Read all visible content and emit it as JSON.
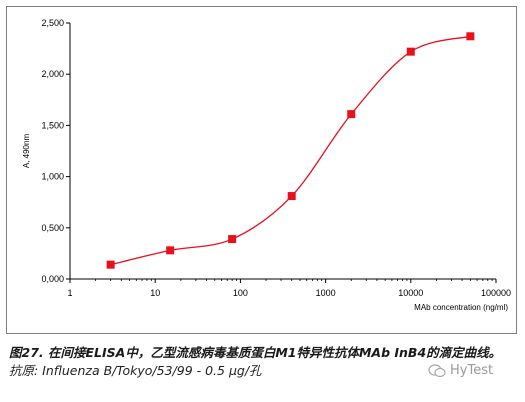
{
  "chart_data": {
    "type": "line",
    "x": [
      3,
      15,
      80,
      400,
      2000,
      10000,
      50000
    ],
    "values": [
      0.14,
      0.28,
      0.39,
      0.81,
      1.61,
      2.22,
      2.37
    ],
    "xscale": "log",
    "xlim": [
      1,
      100000
    ],
    "ylim": [
      0,
      2.5
    ],
    "xticks": [
      "1",
      "10",
      "100",
      "1000",
      "10000",
      "100000"
    ],
    "yticks": [
      "0,000",
      "0,500",
      "1,000",
      "1,500",
      "2,000",
      "2,500"
    ],
    "xlabel": "MAb concentration (ng/ml)",
    "ylabel": "A, 490nm",
    "grid": false,
    "legend": "none",
    "series_color": "#e8101c",
    "marker": "square"
  },
  "caption": {
    "title": "图27. 在间接ELISA中，乙型流感病毒基质蛋白M1特异性抗体MAb  InB4的滴定曲线。",
    "antigen": "抗原: Influenza B/Tokyo/53/99 - 0.5 μg/孔"
  },
  "watermark": {
    "text": "HyTest"
  }
}
